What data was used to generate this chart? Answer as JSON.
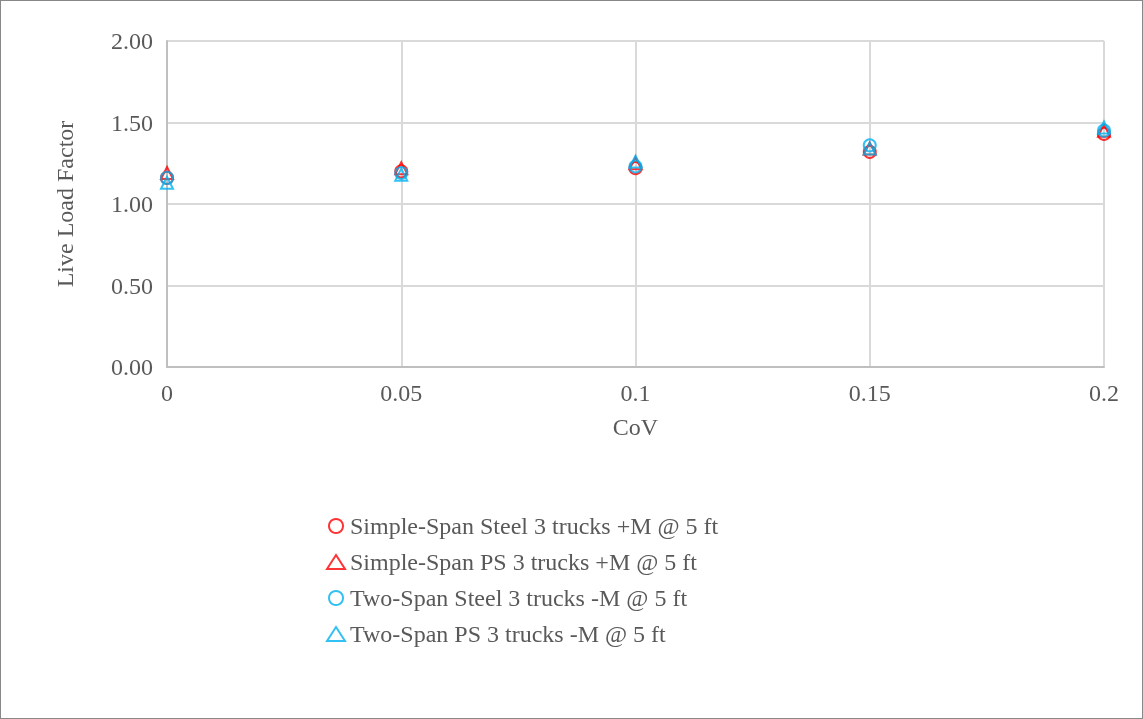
{
  "chart_data": {
    "type": "scatter",
    "xlabel": "CoV",
    "ylabel": "Live Load Factor",
    "x": [
      0,
      0.05,
      0.1,
      0.15,
      0.2
    ],
    "series": [
      {
        "name": "Simple-Span Steel 3 trucks +M @ 5 ft",
        "color": "#ff0000",
        "marker": "circle",
        "values": [
          1.16,
          1.2,
          1.22,
          1.32,
          1.43
        ]
      },
      {
        "name": "Simple-Span PS 3 trucks +M @ 5 ft",
        "color": "#ff0000",
        "marker": "triangle",
        "values": [
          1.19,
          1.22,
          1.25,
          1.34,
          1.45
        ]
      },
      {
        "name": "Two-Span Steel 3 trucks -M @ 5 ft",
        "color": "#00b0f0",
        "marker": "circle",
        "values": [
          1.16,
          1.19,
          1.23,
          1.36,
          1.45
        ]
      },
      {
        "name": "Two-Span PS 3 trucks -M @ 5 ft",
        "color": "#00b0f0",
        "marker": "triangle",
        "values": [
          1.13,
          1.18,
          1.26,
          1.34,
          1.47
        ]
      }
    ],
    "xlim": [
      0,
      0.2
    ],
    "xticks": [
      0,
      0.05,
      0.1,
      0.15,
      0.2
    ],
    "ylim": [
      0,
      2
    ],
    "yticks": [
      {
        "value": 0,
        "label": "0.00"
      },
      {
        "value": 0.5,
        "label": "0.50"
      },
      {
        "value": 1,
        "label": "1.00"
      },
      {
        "value": 1.5,
        "label": "1.50"
      },
      {
        "value": 2,
        "label": "2.00"
      }
    ],
    "grid": true,
    "legend": "bottom"
  }
}
